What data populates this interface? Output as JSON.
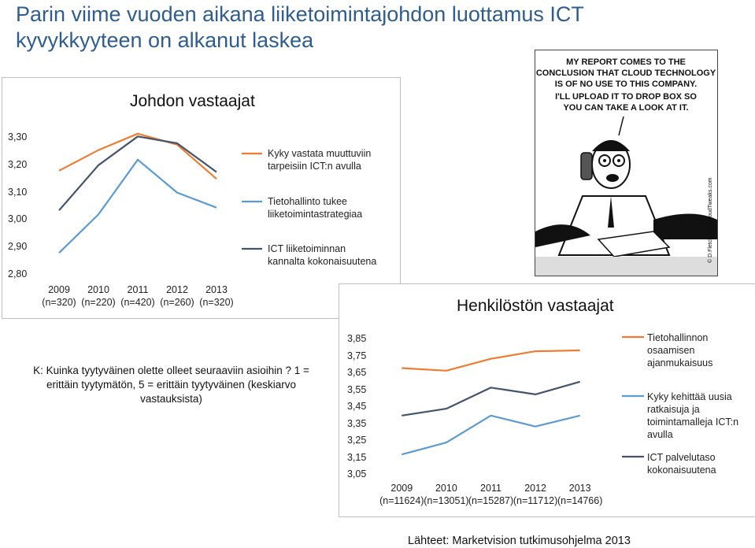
{
  "slide": {
    "title": "Parin viime vuoden aikana liiketoimintajohdon luottamus ICT kyvykkyyteen on alkanut laskea",
    "question": "K: Kuinka tyytyväinen olette olleet seuraaviin asioihin ? 1 = erittäin tyytymätön, 5 = erittäin tyytyväinen (keskiarvo vastauksista)",
    "source": "Lähteet: Marketvision tutkimusohjelma 2013"
  },
  "comic": {
    "caption": "MY REPORT COMES TO THE CONCLUSION THAT CLOUD TECHNOLOGY IS OF NO USE TO THIS COMPANY. I'LL UPLOAD IT TO DROP BOX SO YOU CAN TAKE A LOOK AT IT.",
    "credit": "© D.Fletcher for CloudTweaks.com"
  },
  "colors": {
    "orange": "#ed7d31",
    "lightblue": "#5b9bd5",
    "navy": "#44546a",
    "title_blue": "#2e5d8e"
  },
  "chart_data": [
    {
      "type": "line",
      "title": "Johdon vastaajat",
      "categories": [
        "2009\n(n=320)",
        "2010\n(n=220)",
        "2011\n(n=420)",
        "2012\n(n=260)",
        "2013\n(n=320)"
      ],
      "y_ticks": [
        "3,30",
        "3,20",
        "3,10",
        "3,00",
        "2,90",
        "2,80"
      ],
      "ylim": [
        2.8,
        3.3
      ],
      "grid": false,
      "legend_position": "right",
      "series": [
        {
          "name": "Kyky vastata muuttuviin tarpeisiin ICT:n avulla",
          "color": "#ed7d31",
          "values": [
            3.18,
            3.255,
            3.315,
            3.275,
            3.15
          ]
        },
        {
          "name": "Tietohallinto tukee liiketoimintastrategiaa",
          "color": "#5b9bd5",
          "values": [
            2.88,
            3.02,
            3.22,
            3.1,
            3.045
          ]
        },
        {
          "name": "ICT liiketoiminnan kannalta kokonaisuutena",
          "color": "#44546a",
          "values": [
            3.035,
            3.2,
            3.305,
            3.28,
            3.175
          ]
        }
      ]
    },
    {
      "type": "line",
      "title": "Henkilöstön vastaajat",
      "categories": [
        "2009\n(n=11624)",
        "2010\n(n=13051)",
        "2011\n(n=15287)",
        "2012\n(n=11712)",
        "2013\n(n=14766)"
      ],
      "y_ticks": [
        "3,85",
        "3,75",
        "3,65",
        "3,55",
        "3,45",
        "3,35",
        "3,25",
        "3,15",
        "3,05"
      ],
      "ylim": [
        3.05,
        3.85
      ],
      "grid": false,
      "legend_position": "right",
      "series": [
        {
          "name": "Tietohallinnon osaamisen ajanmukaisuus",
          "color": "#ed7d31",
          "values": [
            3.68,
            3.665,
            3.735,
            3.78,
            3.785
          ]
        },
        {
          "name": "Kyky kehittää uusia ratkaisuja ja toimintamalleja ICT:n avulla",
          "color": "#5b9bd5",
          "values": [
            3.17,
            3.24,
            3.4,
            3.335,
            3.4
          ]
        },
        {
          "name": "ICT palvelutaso kokonaisuutena",
          "color": "#44546a",
          "values": [
            3.4,
            3.44,
            3.565,
            3.525,
            3.6
          ]
        }
      ]
    }
  ]
}
